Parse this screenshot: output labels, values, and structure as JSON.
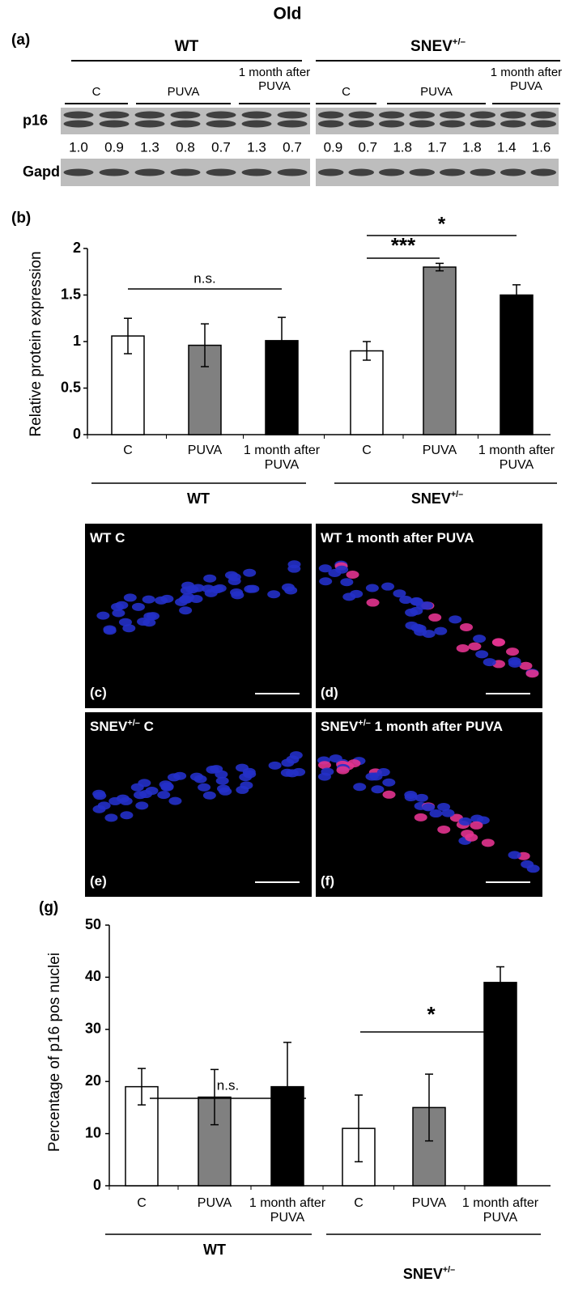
{
  "title": "Old",
  "panel_labels": [
    "(a)",
    "(b)",
    "(g)"
  ],
  "groups": [
    {
      "label": "WT"
    },
    {
      "label": "SNEV",
      "superscript": "+/–"
    }
  ],
  "blot": {
    "subgroups": [
      "C",
      "PUVA",
      "1 month after PUVA"
    ],
    "rows": [
      "p16",
      "Gapdh"
    ],
    "quantification": [
      "1.0",
      "0.9",
      "1.3",
      "0.8",
      "0.7",
      "1.3",
      "0.7",
      "0.9",
      "0.7",
      "1.8",
      "1.7",
      "1.8",
      "1.4",
      "1.6"
    ]
  },
  "micrographs": [
    {
      "label": "WT C",
      "letter": "(c)"
    },
    {
      "label": "WT 1 month after PUVA",
      "letter": "(d)"
    },
    {
      "label": "SNEV",
      "superscript": "+/–",
      "rest": "C",
      "letter": "(e)"
    },
    {
      "label": "SNEV",
      "superscript": "+/–",
      "rest": "1 month after PUVA",
      "letter": "(f)"
    }
  ],
  "chart_data": [
    {
      "type": "bar",
      "y_label": "Relative protein expression",
      "categories": [
        "C",
        "PUVA",
        "1 month after PUVA",
        "C",
        "PUVA",
        "1 month after PUVA"
      ],
      "values": [
        1.06,
        0.96,
        1.01,
        0.9,
        1.8,
        1.5
      ],
      "errors": [
        0.19,
        0.23,
        0.25,
        0.1,
        0.04,
        0.11
      ],
      "colors": [
        "#ffffff",
        "#808080",
        "#000000",
        "#ffffff",
        "#808080",
        "#000000"
      ],
      "ylim": [
        0,
        2
      ],
      "yticks": [
        0,
        0.5,
        1,
        1.5,
        2
      ],
      "annotations": [
        "n.s.",
        "***",
        "*"
      ]
    },
    {
      "type": "bar",
      "y_label": "Percentage of  p16 pos nuclei",
      "categories": [
        "C",
        "PUVA",
        "1 month after PUVA",
        "C",
        "PUVA",
        "1 month after PUVA"
      ],
      "values": [
        19,
        17,
        19,
        11,
        15,
        39
      ],
      "errors": [
        3.5,
        5.3,
        8.5,
        6.4,
        6.4,
        3
      ],
      "colors": [
        "#ffffff",
        "#808080",
        "#000000",
        "#ffffff",
        "#808080",
        "#000000"
      ],
      "ylim": [
        0,
        50
      ],
      "yticks": [
        0,
        10,
        20,
        30,
        40,
        50
      ],
      "annotations": [
        "n.s.",
        "*"
      ]
    }
  ]
}
